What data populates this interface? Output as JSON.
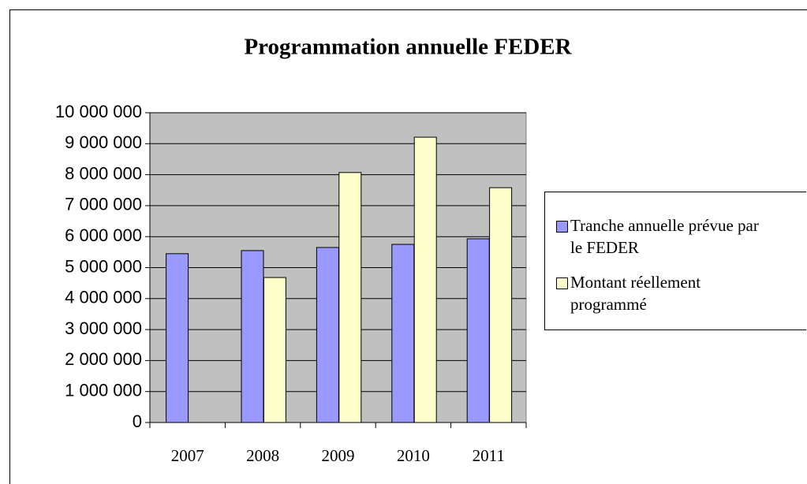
{
  "chart_data": {
    "type": "bar",
    "title": "Programmation annuelle FEDER",
    "categories": [
      "2007",
      "2008",
      "2009",
      "2010",
      "2011"
    ],
    "series": [
      {
        "name": "Tranche annuelle prévue par le FEDER",
        "color": "#9999ff",
        "values": [
          5450000,
          5550000,
          5650000,
          5750000,
          5930000
        ]
      },
      {
        "name": "Montant réellement programmé",
        "color": "#ffffcc",
        "values": [
          null,
          4680000,
          8070000,
          9210000,
          7580000
        ]
      }
    ],
    "ylim": [
      0,
      10000000
    ],
    "yticks": [
      {
        "value": 0,
        "label": "0"
      },
      {
        "value": 1000000,
        "label": "1 000 000"
      },
      {
        "value": 2000000,
        "label": "2 000 000"
      },
      {
        "value": 3000000,
        "label": "3 000 000"
      },
      {
        "value": 4000000,
        "label": "4 000 000"
      },
      {
        "value": 5000000,
        "label": "5 000 000"
      },
      {
        "value": 6000000,
        "label": "6 000 000"
      },
      {
        "value": 7000000,
        "label": "7 000 000"
      },
      {
        "value": 8000000,
        "label": "8 000 000"
      },
      {
        "value": 9000000,
        "label": "9 000 000"
      },
      {
        "value": 10000000,
        "label": "10 000 000"
      }
    ],
    "grid": true,
    "legend": "right"
  }
}
